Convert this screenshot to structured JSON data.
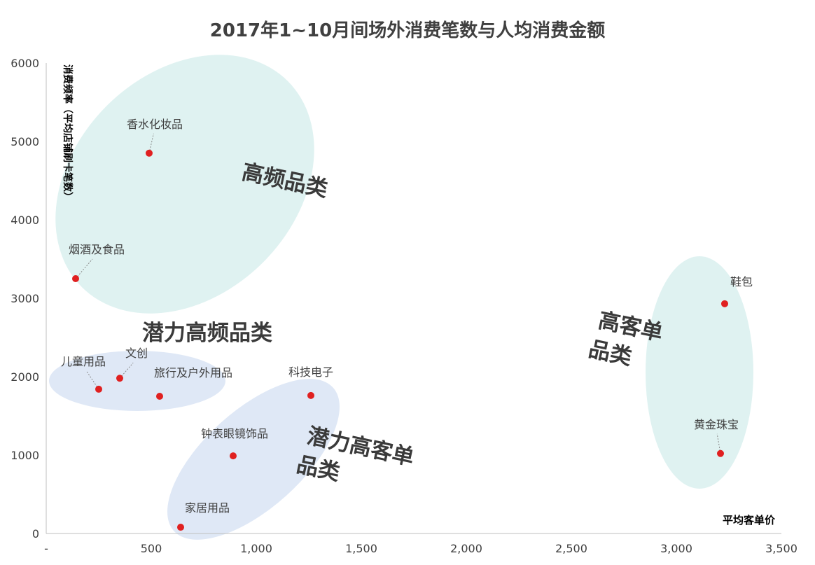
{
  "chart_data": {
    "type": "scatter",
    "title": "2017年1~10月间场外消费笔数与人均消费金额",
    "xlabel": "平均客单价",
    "ylabel": "消费频率（平均店铺刷卡笔数）",
    "xlim": [
      0,
      3500
    ],
    "ylim": [
      0,
      6000
    ],
    "x_ticks": [
      "-",
      "500",
      "1,000",
      "1,500",
      "2,000",
      "2,500",
      "3,000",
      "3,500"
    ],
    "x_tick_values": [
      0,
      500,
      1000,
      1500,
      2000,
      2500,
      3000,
      3500
    ],
    "y_ticks": [
      "0",
      "1000",
      "2000",
      "3000",
      "4000",
      "5000",
      "6000"
    ],
    "y_tick_values": [
      0,
      1000,
      2000,
      3000,
      4000,
      5000,
      6000
    ],
    "grid": false,
    "colors": {
      "point": "#e02020",
      "ellipse_teal": "#dff2f1",
      "ellipse_blue": "#dfe8f6"
    },
    "points": [
      {
        "label": "香水化妆品",
        "x": 490,
        "y": 4850
      },
      {
        "label": "烟酒及食品",
        "x": 140,
        "y": 3250
      },
      {
        "label": "儿童用品",
        "x": 250,
        "y": 1840
      },
      {
        "label": "文创",
        "x": 350,
        "y": 1980
      },
      {
        "label": "旅行及户外用品",
        "x": 540,
        "y": 1750
      },
      {
        "label": "科技电子",
        "x": 1260,
        "y": 1760
      },
      {
        "label": "钟表眼镜饰品",
        "x": 890,
        "y": 990
      },
      {
        "label": "家居用品",
        "x": 640,
        "y": 80
      },
      {
        "label": "鞋包",
        "x": 3230,
        "y": 2930
      },
      {
        "label": "黄金珠宝",
        "x": 3210,
        "y": 1020
      }
    ],
    "groups": [
      {
        "label": "高频品类"
      },
      {
        "label": "潜力高频品类"
      },
      {
        "label": "潜力高客单品类",
        "line1": "潜力高客单",
        "line2": "品类"
      },
      {
        "label": "高客单品类",
        "line1": "高客单",
        "line2": "品类"
      }
    ]
  }
}
